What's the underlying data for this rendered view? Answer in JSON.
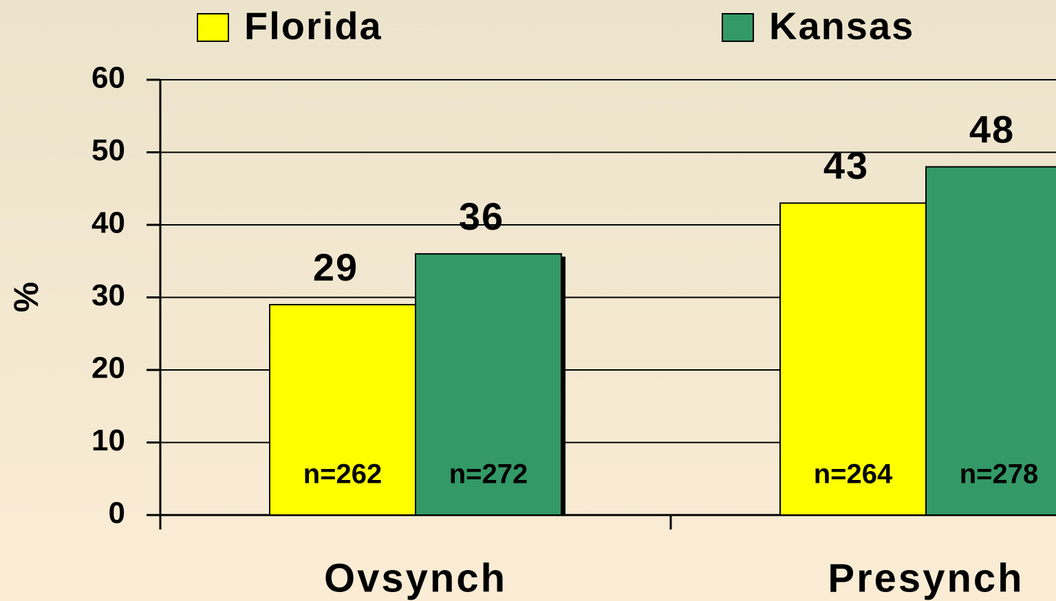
{
  "chart_data": {
    "type": "bar",
    "categories": [
      "Ovsynch",
      "Presynch"
    ],
    "y_label": "%",
    "series": [
      {
        "name": "Florida",
        "color": "#ffff00",
        "values": [
          29,
          43
        ],
        "n_labels": [
          "n=262",
          "n=264"
        ]
      },
      {
        "name": "Kansas",
        "color": "#339966",
        "values": [
          36,
          48
        ],
        "n_labels": [
          "n=272",
          "n=278"
        ]
      }
    ],
    "ylim": [
      0,
      60
    ],
    "yticks": [
      0,
      10,
      20,
      30,
      40,
      50,
      60
    ],
    "grid": true
  }
}
